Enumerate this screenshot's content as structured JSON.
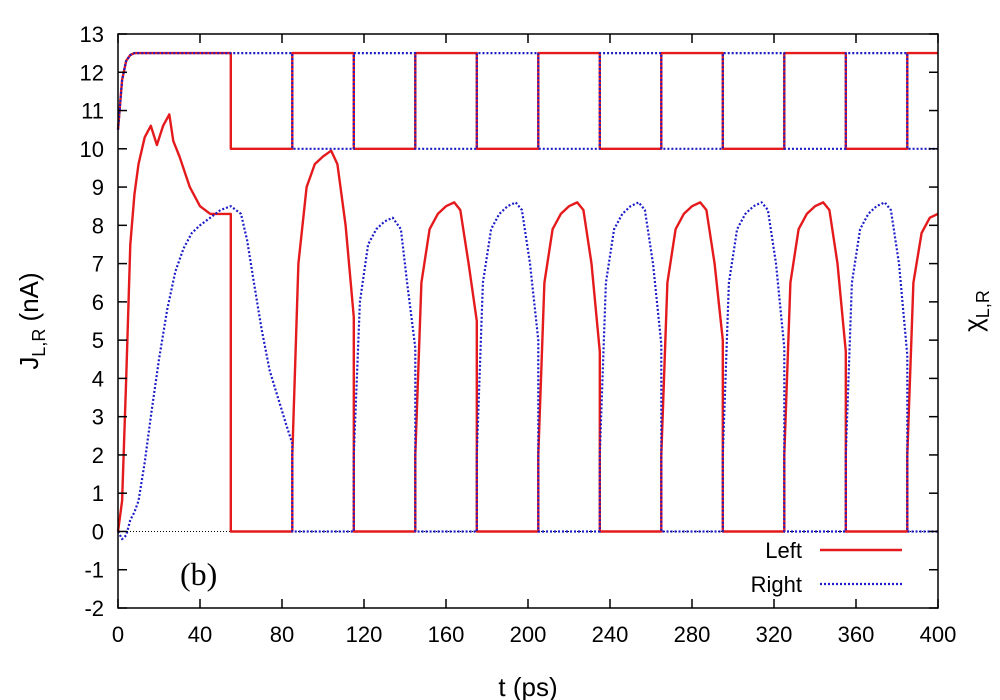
{
  "chart_data": {
    "type": "line",
    "title": "",
    "panel_label": "(b)",
    "xlabel": "t (ps)",
    "ylabel_left": {
      "main": "J",
      "sub": "L,R",
      "unit": " (nA)"
    },
    "ylabel_right": {
      "main": "χ",
      "sub": "L,R"
    },
    "xlim": [
      0,
      400
    ],
    "ylim": [
      -2,
      13
    ],
    "xticks": [
      0,
      40,
      80,
      120,
      160,
      200,
      240,
      280,
      320,
      360,
      400
    ],
    "yticks": [
      -2,
      -1,
      0,
      1,
      2,
      3,
      4,
      5,
      6,
      7,
      8,
      9,
      10,
      11,
      12,
      13
    ],
    "zero_line": true,
    "legend": {
      "position": "bottom-right",
      "entries": [
        "Left",
        "Right"
      ]
    },
    "colors": {
      "left": "#e41a1c",
      "right": "#1c1cc8",
      "axis": "#000000"
    },
    "series": [
      {
        "name": "Left",
        "role": "current",
        "style": "solid",
        "points": [
          [
            0,
            0
          ],
          [
            2,
            0.8
          ],
          [
            4,
            4
          ],
          [
            6,
            7.5
          ],
          [
            8,
            8.8
          ],
          [
            10,
            9.6
          ],
          [
            13,
            10.3
          ],
          [
            16,
            10.6
          ],
          [
            19,
            10.1
          ],
          [
            22,
            10.6
          ],
          [
            25,
            10.9
          ],
          [
            27,
            10.2
          ],
          [
            30,
            9.8
          ],
          [
            35,
            9.0
          ],
          [
            40,
            8.5
          ],
          [
            45,
            8.3
          ],
          [
            50,
            8.3
          ],
          [
            55,
            8.3
          ],
          [
            55,
            0
          ],
          [
            85,
            0
          ],
          [
            85,
            2.0
          ],
          [
            88,
            7.0
          ],
          [
            92,
            9.0
          ],
          [
            96,
            9.6
          ],
          [
            100,
            9.8
          ],
          [
            104,
            9.95
          ],
          [
            107,
            9.6
          ],
          [
            111,
            8.0
          ],
          [
            115,
            5.6
          ],
          [
            115,
            0
          ],
          [
            145,
            0
          ],
          [
            145,
            2.0
          ],
          [
            148,
            6.5
          ],
          [
            152,
            7.9
          ],
          [
            156,
            8.3
          ],
          [
            160,
            8.5
          ],
          [
            164,
            8.6
          ],
          [
            167,
            8.4
          ],
          [
            171,
            7.0
          ],
          [
            175,
            5.5
          ],
          [
            175,
            0
          ],
          [
            205,
            0
          ],
          [
            205,
            2.0
          ],
          [
            208,
            6.5
          ],
          [
            212,
            7.9
          ],
          [
            216,
            8.3
          ],
          [
            220,
            8.5
          ],
          [
            224,
            8.6
          ],
          [
            227,
            8.4
          ],
          [
            231,
            7.0
          ],
          [
            235,
            4.7
          ],
          [
            235,
            0
          ],
          [
            265,
            0
          ],
          [
            265,
            2.0
          ],
          [
            268,
            6.5
          ],
          [
            272,
            7.9
          ],
          [
            276,
            8.3
          ],
          [
            280,
            8.5
          ],
          [
            284,
            8.6
          ],
          [
            287,
            8.4
          ],
          [
            291,
            7.0
          ],
          [
            295,
            5.0
          ],
          [
            295,
            0
          ],
          [
            325,
            0
          ],
          [
            325,
            2.0
          ],
          [
            328,
            6.5
          ],
          [
            332,
            7.9
          ],
          [
            336,
            8.3
          ],
          [
            340,
            8.5
          ],
          [
            344,
            8.6
          ],
          [
            347,
            8.4
          ],
          [
            351,
            7.0
          ],
          [
            355,
            4.7
          ],
          [
            355,
            0
          ],
          [
            385,
            0
          ],
          [
            385,
            2.0
          ],
          [
            388,
            6.5
          ],
          [
            392,
            7.8
          ],
          [
            396,
            8.2
          ],
          [
            400,
            8.3
          ]
        ]
      },
      {
        "name": "Right",
        "role": "current",
        "style": "dotted",
        "points": [
          [
            0,
            0
          ],
          [
            2,
            -0.2
          ],
          [
            4,
            -0.1
          ],
          [
            6,
            0.3
          ],
          [
            8,
            0.5
          ],
          [
            10,
            0.8
          ],
          [
            13,
            1.8
          ],
          [
            16,
            3.0
          ],
          [
            20,
            4.5
          ],
          [
            24,
            5.8
          ],
          [
            28,
            6.8
          ],
          [
            32,
            7.4
          ],
          [
            36,
            7.8
          ],
          [
            40,
            8.0
          ],
          [
            45,
            8.2
          ],
          [
            50,
            8.4
          ],
          [
            55,
            8.5
          ],
          [
            60,
            8.3
          ],
          [
            63,
            7.6
          ],
          [
            66,
            6.6
          ],
          [
            70,
            5.3
          ],
          [
            74,
            4.2
          ],
          [
            78,
            3.5
          ],
          [
            82,
            2.8
          ],
          [
            85,
            2.3
          ],
          [
            85,
            0
          ],
          [
            115,
            0
          ],
          [
            115,
            2.0
          ],
          [
            118,
            6.0
          ],
          [
            122,
            7.5
          ],
          [
            126,
            7.9
          ],
          [
            130,
            8.1
          ],
          [
            134,
            8.2
          ],
          [
            138,
            7.9
          ],
          [
            141,
            6.5
          ],
          [
            145,
            4.8
          ],
          [
            145,
            0
          ],
          [
            175,
            0
          ],
          [
            175,
            2.0
          ],
          [
            178,
            6.5
          ],
          [
            182,
            7.9
          ],
          [
            186,
            8.3
          ],
          [
            190,
            8.5
          ],
          [
            194,
            8.6
          ],
          [
            197,
            8.4
          ],
          [
            201,
            7.0
          ],
          [
            205,
            5.0
          ],
          [
            205,
            0
          ],
          [
            235,
            0
          ],
          [
            235,
            2.0
          ],
          [
            238,
            6.5
          ],
          [
            242,
            7.9
          ],
          [
            246,
            8.3
          ],
          [
            250,
            8.5
          ],
          [
            254,
            8.6
          ],
          [
            257,
            8.4
          ],
          [
            261,
            7.0
          ],
          [
            265,
            4.9
          ],
          [
            265,
            0
          ],
          [
            295,
            0
          ],
          [
            295,
            2.0
          ],
          [
            298,
            6.5
          ],
          [
            302,
            7.9
          ],
          [
            306,
            8.3
          ],
          [
            310,
            8.5
          ],
          [
            314,
            8.6
          ],
          [
            317,
            8.4
          ],
          [
            321,
            7.0
          ],
          [
            325,
            4.8
          ],
          [
            325,
            0
          ],
          [
            355,
            0
          ],
          [
            355,
            2.0
          ],
          [
            358,
            6.5
          ],
          [
            362,
            7.9
          ],
          [
            366,
            8.3
          ],
          [
            370,
            8.5
          ],
          [
            374,
            8.6
          ],
          [
            377,
            8.4
          ],
          [
            381,
            7.0
          ],
          [
            385,
            4.6
          ],
          [
            385,
            0
          ],
          [
            400,
            0
          ]
        ]
      },
      {
        "name": "Left",
        "role": "chi",
        "style": "solid",
        "points": [
          [
            0,
            10.5
          ],
          [
            2,
            11.8
          ],
          [
            4,
            12.3
          ],
          [
            6,
            12.45
          ],
          [
            8,
            12.5
          ],
          [
            55,
            12.5
          ],
          [
            55,
            10
          ],
          [
            85,
            10
          ],
          [
            85,
            12.5
          ],
          [
            115,
            12.5
          ],
          [
            115,
            10
          ],
          [
            145,
            10
          ],
          [
            145,
            12.5
          ],
          [
            175,
            12.5
          ],
          [
            175,
            10
          ],
          [
            205,
            10
          ],
          [
            205,
            12.5
          ],
          [
            235,
            12.5
          ],
          [
            235,
            10
          ],
          [
            265,
            10
          ],
          [
            265,
            12.5
          ],
          [
            295,
            12.5
          ],
          [
            295,
            10
          ],
          [
            325,
            10
          ],
          [
            325,
            12.5
          ],
          [
            355,
            12.5
          ],
          [
            355,
            10
          ],
          [
            385,
            10
          ],
          [
            385,
            12.5
          ],
          [
            400,
            12.5
          ]
        ]
      },
      {
        "name": "Right",
        "role": "chi",
        "style": "dotted",
        "points": [
          [
            0,
            10.5
          ],
          [
            2,
            11.8
          ],
          [
            4,
            12.3
          ],
          [
            6,
            12.45
          ],
          [
            8,
            12.5
          ],
          [
            85,
            12.5
          ],
          [
            85,
            10
          ],
          [
            115,
            10
          ],
          [
            115,
            12.5
          ],
          [
            145,
            12.5
          ],
          [
            145,
            10
          ],
          [
            175,
            10
          ],
          [
            175,
            12.5
          ],
          [
            205,
            12.5
          ],
          [
            205,
            10
          ],
          [
            235,
            10
          ],
          [
            235,
            12.5
          ],
          [
            265,
            12.5
          ],
          [
            265,
            10
          ],
          [
            295,
            10
          ],
          [
            295,
            12.5
          ],
          [
            325,
            12.5
          ],
          [
            325,
            10
          ],
          [
            355,
            10
          ],
          [
            355,
            12.5
          ],
          [
            385,
            12.5
          ],
          [
            385,
            10
          ],
          [
            400,
            10
          ]
        ]
      }
    ]
  }
}
